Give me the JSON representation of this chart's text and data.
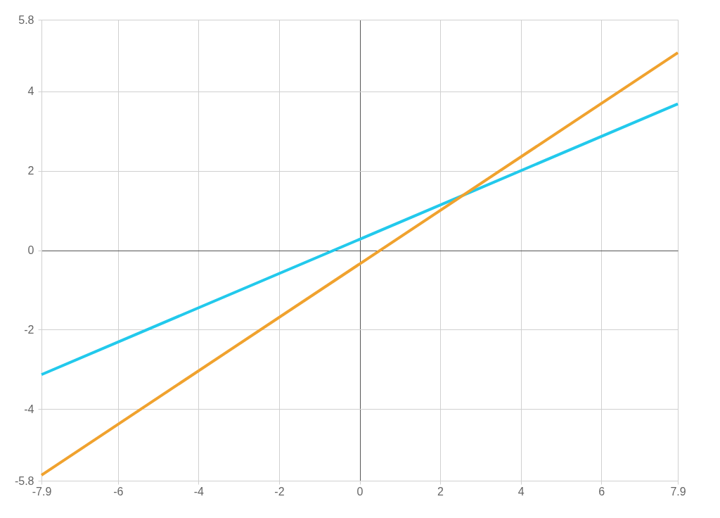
{
  "chart_data": {
    "type": "line",
    "x": [
      -7.9,
      7.9
    ],
    "series": [
      {
        "color": "#22c9ec",
        "values": [
          -3.13,
          3.68
        ]
      },
      {
        "color": "#f0a22e",
        "values": [
          -5.66,
          4.97
        ]
      }
    ],
    "xlim": [
      -7.9,
      7.9
    ],
    "ylim": [
      -5.8,
      5.8
    ],
    "xticks": [
      -7.9,
      -6,
      -4,
      -2,
      0,
      2,
      4,
      6,
      7.9
    ],
    "yticks": [
      -5.8,
      -4,
      -2,
      0,
      2,
      4,
      5.8
    ],
    "grid": true,
    "marker": "none",
    "line_style": "solid",
    "legend": false
  }
}
